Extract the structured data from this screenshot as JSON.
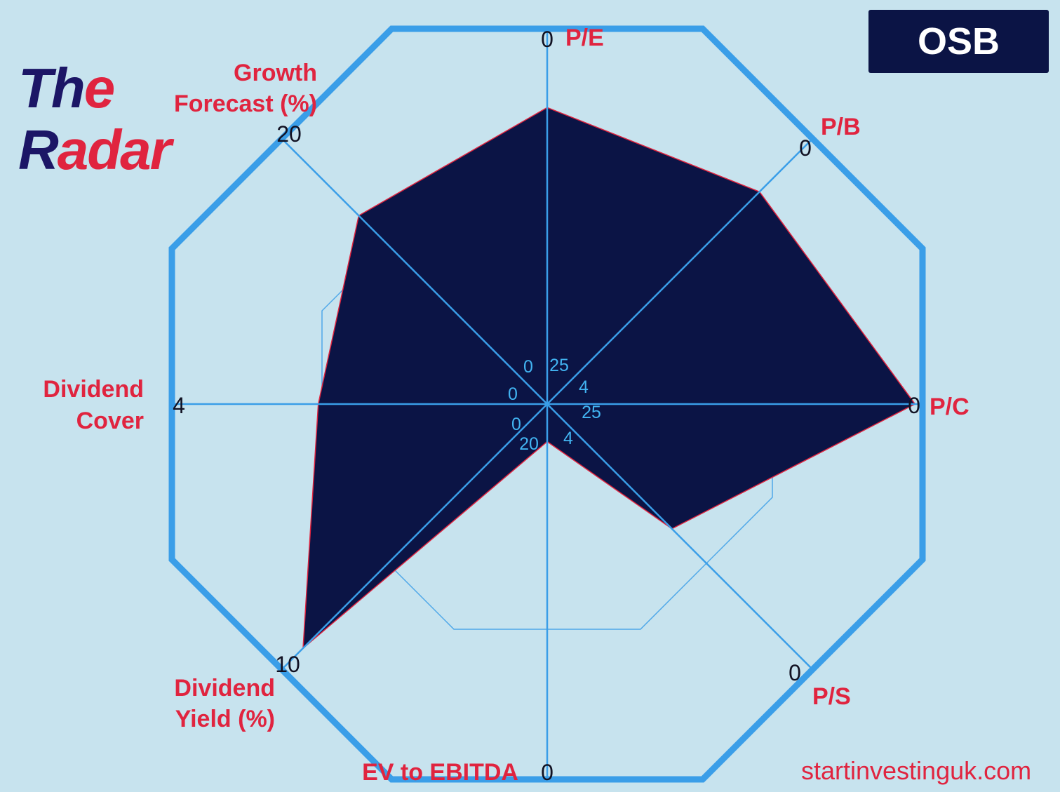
{
  "brand": {
    "logo_line1_part1": "Th",
    "logo_line1_part2": "e",
    "logo_line2_part1": "R",
    "logo_line2_part2": "adar",
    "ticker": "OSB",
    "website": "startinvestinguk.com",
    "colors": {
      "background": "#c7e3ee",
      "navy": "#0b1445",
      "red": "#e0243f",
      "blue": "#3a9ee8",
      "logo_dark": "#1c1666"
    }
  },
  "chart_data": {
    "type": "radar",
    "title": "OSB",
    "axes": [
      {
        "name": "P/E",
        "label_lines": [
          "P/E"
        ],
        "outer_tick": "0",
        "inner_tick": "25",
        "value": 0.79
      },
      {
        "name": "P/B",
        "label_lines": [
          "P/B"
        ],
        "outer_tick": "0",
        "inner_tick": "4",
        "value": 0.8
      },
      {
        "name": "P/C",
        "label_lines": [
          "P/C"
        ],
        "outer_tick": "0",
        "inner_tick": "25",
        "value": 0.98
      },
      {
        "name": "P/S",
        "label_lines": [
          "P/S"
        ],
        "outer_tick": "0",
        "inner_tick": "4",
        "value": 0.47
      },
      {
        "name": "EV to EBITDA",
        "label_lines": [
          "EV to EBITDA"
        ],
        "outer_tick": "0",
        "inner_tick": "20",
        "value": 0.1
      },
      {
        "name": "Dividend Yield (%)",
        "label_lines": [
          "Dividend",
          "Yield (%)"
        ],
        "outer_tick": "10",
        "inner_tick": "0",
        "value": 0.92
      },
      {
        "name": "Dividend Cover",
        "label_lines": [
          "Dividend",
          "Cover"
        ],
        "outer_tick": "4",
        "inner_tick": "0",
        "value": 0.61
      },
      {
        "name": "Growth Forecast (%)",
        "label_lines": [
          "Growth",
          "Forecast (%)"
        ],
        "outer_tick": "20",
        "inner_tick": "0",
        "value": 0.71
      }
    ],
    "gridlines": [
      0.1,
      0.6,
      1.0
    ],
    "series": [
      {
        "name": "OSB",
        "color": "#0b1445",
        "edge": "#e0243f"
      }
    ]
  }
}
